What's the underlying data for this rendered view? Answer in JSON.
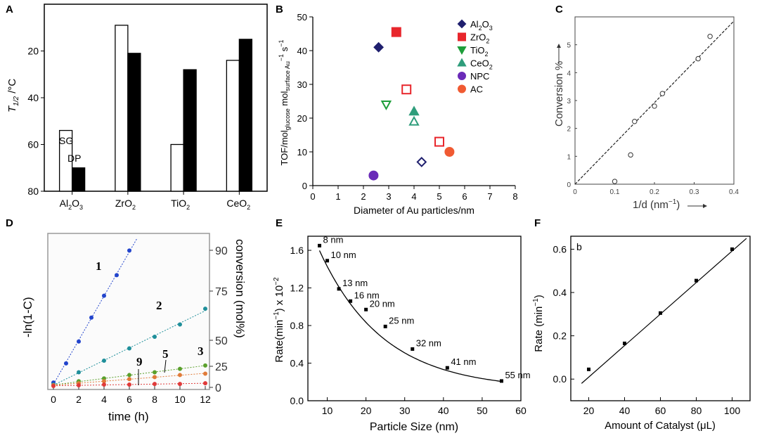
{
  "chart_data": [
    {
      "panel": "A",
      "type": "bar",
      "ylabel": "T1/2 /°C",
      "ylabel_main": "T",
      "ylabel_sub": "1/2",
      "ylabel_tail": " /°C",
      "ylim": [
        80,
        0
      ],
      "y_ticks": [
        20,
        40,
        60,
        80
      ],
      "categories": [
        "Al2O3",
        "ZrO2",
        "TiO2",
        "CeO2"
      ],
      "category_labels": [
        {
          "main": "Al",
          "sub1": "2",
          "mid": "O",
          "sub2": "3"
        },
        {
          "main": "Zr",
          "sub1": "",
          "mid": "O",
          "sub2": "2"
        },
        {
          "main": "Ti",
          "sub1": "",
          "mid": "O",
          "sub2": "2"
        },
        {
          "main": "Ce",
          "sub1": "",
          "mid": "O",
          "sub2": "2"
        }
      ],
      "series": [
        {
          "name": "SG",
          "fill": "#ffffff",
          "values": [
            54,
            9,
            60,
            24
          ]
        },
        {
          "name": "DP",
          "fill": "#000000",
          "values": [
            70,
            21,
            28,
            15
          ]
        }
      ],
      "annotations": [
        "SG",
        "DP"
      ]
    },
    {
      "panel": "B",
      "type": "scatter",
      "xlabel": "Diameter of Au particles/nm",
      "ylabel": "TOF/molglucose molsurface Au−1 s−1",
      "ylabel_parts": {
        "a": "TOF/mol",
        "b": "glucose",
        "c": " mol",
        "d": "surface Au",
        "e": "−1",
        "f": " s",
        "g": "−1"
      },
      "xlim": [
        0,
        8
      ],
      "ylim": [
        0,
        50
      ],
      "x_ticks": [
        0,
        1,
        2,
        3,
        4,
        5,
        6,
        7,
        8
      ],
      "y_ticks": [
        0,
        10,
        20,
        30,
        40,
        50
      ],
      "series": [
        {
          "name": "Al2O3",
          "legend": {
            "main": "Al",
            "sub1": "2",
            "mid": "O",
            "sub2": "3"
          },
          "marker": "diamond",
          "color": "#1f1f6e",
          "points": [
            {
              "x": 2.6,
              "y": 41,
              "filled": true
            },
            {
              "x": 4.3,
              "y": 7,
              "filled": false
            }
          ]
        },
        {
          "name": "ZrO2",
          "legend": {
            "main": "Zr",
            "sub1": "",
            "mid": "O",
            "sub2": "2"
          },
          "marker": "square",
          "color": "#e8262c",
          "points": [
            {
              "x": 3.3,
              "y": 45.5,
              "filled": true
            },
            {
              "x": 3.7,
              "y": 28.5,
              "filled": false
            },
            {
              "x": 5.0,
              "y": 13,
              "filled": false
            }
          ]
        },
        {
          "name": "TiO2",
          "legend": {
            "main": "Ti",
            "sub1": "",
            "mid": "O",
            "sub2": "2"
          },
          "marker": "triangle-down",
          "color": "#1e9e3a",
          "points": [
            {
              "x": 2.9,
              "y": 24,
              "filled": false
            }
          ]
        },
        {
          "name": "CeO2",
          "legend": {
            "main": "Ce",
            "sub1": "",
            "mid": "O",
            "sub2": "2"
          },
          "marker": "triangle-up",
          "color": "#2e9d7b",
          "points": [
            {
              "x": 4.0,
              "y": 22,
              "filled": true
            },
            {
              "x": 4.0,
              "y": 19,
              "filled": false
            }
          ]
        },
        {
          "name": "NPC",
          "legend": {
            "main": "NPC",
            "sub1": "",
            "mid": "",
            "sub2": ""
          },
          "marker": "circle",
          "color": "#6a2bb8",
          "points": [
            {
              "x": 2.4,
              "y": 3,
              "filled": true
            }
          ]
        },
        {
          "name": "AC",
          "legend": {
            "main": "AC",
            "sub1": "",
            "mid": "",
            "sub2": ""
          },
          "marker": "circle",
          "color": "#f05a32",
          "points": [
            {
              "x": 5.4,
              "y": 10,
              "filled": true
            }
          ]
        }
      ]
    },
    {
      "panel": "C",
      "type": "scatter",
      "xlabel": "1/d (nm−1)",
      "xlabel_parts": {
        "a": "1/d (nm",
        "b": "−1",
        "c": ")"
      },
      "ylabel": "Conversion %",
      "xlim": [
        0,
        0.4
      ],
      "ylim": [
        0,
        6
      ],
      "x_ticks": [
        "0",
        "0.1",
        "0.2",
        "0.3",
        "0.4"
      ],
      "y_ticks": [
        "0",
        "1",
        "2",
        "3",
        "4",
        "5"
      ],
      "points": [
        {
          "x": 0.1,
          "y": 0.1
        },
        {
          "x": 0.14,
          "y": 1.05
        },
        {
          "x": 0.15,
          "y": 2.25
        },
        {
          "x": 0.2,
          "y": 2.8
        },
        {
          "x": 0.22,
          "y": 3.25
        },
        {
          "x": 0.31,
          "y": 4.5
        },
        {
          "x": 0.34,
          "y": 5.3
        }
      ],
      "fit_line": {
        "x": [
          0,
          0.4
        ],
        "y": [
          0,
          5.85
        ],
        "style": "dashed"
      }
    },
    {
      "panel": "D",
      "type": "scatter",
      "xlabel": "time (h)",
      "ylabel_left": "-ln(1-C)",
      "ylabel_right": "conversion (mol%)",
      "xlim": [
        0,
        12
      ],
      "x_ticks": [
        0,
        2,
        4,
        6,
        8,
        10,
        12
      ],
      "right_ticks": [
        "0",
        "25",
        "50",
        "75",
        "90"
      ],
      "series": [
        {
          "name": "1",
          "color": "#2244cc",
          "points": [
            [
              0,
              0.05
            ],
            [
              1,
              0.33
            ],
            [
              2,
              0.65
            ],
            [
              3,
              1.0
            ],
            [
              4,
              1.32
            ],
            [
              5,
              1.62
            ],
            [
              6,
              1.98
            ]
          ]
        },
        {
          "name": "2",
          "color": "#1f8f9a",
          "points": [
            [
              0,
              0.02
            ],
            [
              2,
              0.2
            ],
            [
              4,
              0.37
            ],
            [
              6,
              0.55
            ],
            [
              8,
              0.72
            ],
            [
              10,
              0.9
            ],
            [
              12,
              1.13
            ]
          ]
        },
        {
          "name": "3",
          "color": "#5aa02c",
          "points": [
            [
              0,
              0.01
            ],
            [
              2,
              0.07
            ],
            [
              4,
              0.11
            ],
            [
              6,
              0.16
            ],
            [
              8,
              0.2
            ],
            [
              10,
              0.25
            ],
            [
              12,
              0.3
            ]
          ]
        },
        {
          "name": "5",
          "color": "#e07b39",
          "points": [
            [
              0,
              0.01
            ],
            [
              2,
              0.04
            ],
            [
              4,
              0.07
            ],
            [
              6,
              0.1
            ],
            [
              8,
              0.13
            ],
            [
              10,
              0.16
            ],
            [
              12,
              0.18
            ]
          ]
        },
        {
          "name": "9",
          "color": "#e03a3a",
          "points": [
            [
              0,
              0.0
            ],
            [
              2,
              0.01
            ],
            [
              4,
              0.02
            ],
            [
              6,
              0.02
            ],
            [
              8,
              0.03
            ],
            [
              10,
              0.03
            ],
            [
              12,
              0.04
            ]
          ]
        }
      ],
      "labels": [
        "1",
        "2",
        "3",
        "5",
        "9"
      ]
    },
    {
      "panel": "E",
      "type": "scatter",
      "xlabel": "Particle Size (nm)",
      "ylabel": "Rate(min−1) x 10−2",
      "ylabel_parts": {
        "a": "Rate(min",
        "b": "−1",
        "c": ") x 10",
        "d": "−2"
      },
      "xlim": [
        5,
        60
      ],
      "ylim": [
        0,
        1.75
      ],
      "x_ticks": [
        10,
        20,
        30,
        40,
        50,
        60
      ],
      "y_ticks": [
        "0.0",
        "0.4",
        "0.8",
        "1.2",
        "1.6"
      ],
      "points": [
        {
          "x": 8,
          "y": 1.65,
          "label": "8 nm"
        },
        {
          "x": 10,
          "y": 1.49,
          "label": "10 nm"
        },
        {
          "x": 13,
          "y": 1.19,
          "label": "13 nm"
        },
        {
          "x": 16,
          "y": 1.06,
          "label": "16 nm"
        },
        {
          "x": 20,
          "y": 0.97,
          "label": "20 nm"
        },
        {
          "x": 25,
          "y": 0.79,
          "label": "25 nm"
        },
        {
          "x": 32,
          "y": 0.55,
          "label": "32 nm"
        },
        {
          "x": 41,
          "y": 0.35,
          "label": "41 nm"
        },
        {
          "x": 55,
          "y": 0.21,
          "label": "55 nm"
        }
      ],
      "fit_curve": "exponential decay"
    },
    {
      "panel": "F",
      "type": "scatter",
      "xlabel": "Amount of Catalyst (μL)",
      "ylabel": "Rate (min−1)",
      "ylabel_parts": {
        "a": "Rate (min",
        "b": "−1",
        "c": ")"
      },
      "inset_label": "b",
      "xlim": [
        10,
        110
      ],
      "ylim": [
        -0.1,
        0.66
      ],
      "x_ticks": [
        20,
        40,
        60,
        80,
        100
      ],
      "y_ticks": [
        "0.0",
        "0.2",
        "0.4",
        "0.6"
      ],
      "points": [
        {
          "x": 20,
          "y": 0.045
        },
        {
          "x": 40,
          "y": 0.165
        },
        {
          "x": 60,
          "y": 0.305
        },
        {
          "x": 80,
          "y": 0.455
        },
        {
          "x": 100,
          "y": 0.6
        }
      ],
      "fit_line": {
        "x": [
          16,
          108
        ],
        "y": [
          -0.02,
          0.65
        ]
      }
    }
  ]
}
